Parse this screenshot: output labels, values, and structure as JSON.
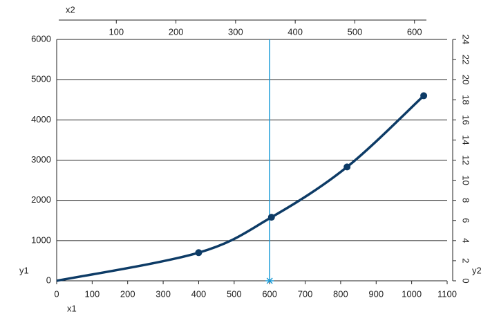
{
  "chart_data": {
    "type": "line",
    "x_label": "x1",
    "y_label": "y1",
    "x2_label": "x2",
    "y2_label": "y2",
    "xlim": [
      0,
      1100
    ],
    "xticks": [
      0,
      100,
      200,
      300,
      400,
      500,
      600,
      700,
      800,
      900,
      1000,
      1100
    ],
    "ylim": [
      0,
      6000
    ],
    "yticks": [
      0,
      1000,
      2000,
      3000,
      4000,
      5000,
      6000
    ],
    "x2lim": [
      0,
      620
    ],
    "x2ticks": [
      100,
      200,
      300,
      400,
      500,
      600
    ],
    "y2lim": [
      0,
      24
    ],
    "y2ticks": [
      0,
      2,
      4,
      6,
      8,
      10,
      12,
      14,
      16,
      18,
      20,
      22,
      24
    ],
    "grid": true,
    "series": [
      {
        "color": "#0d3b66",
        "x": [
          0,
          400,
          605,
          818,
          1034
        ],
        "values": [
          0,
          700,
          1580,
          2830,
          4600
        ]
      }
    ],
    "cursor": {
      "x": 600,
      "color": "#1a9bd7"
    }
  }
}
